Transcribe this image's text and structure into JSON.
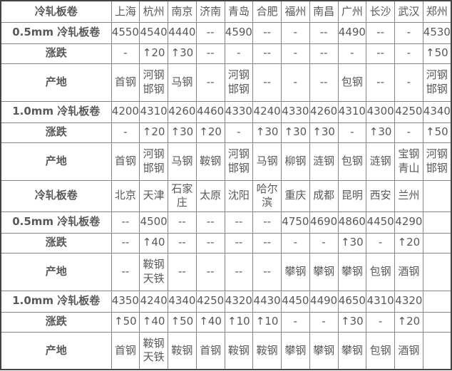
{
  "colors": {
    "section_label": "#ff0000",
    "city_text": "#0000ff",
    "row_label_text": "#3d3d3d",
    "value_text": "#595959",
    "change_up": "#fe0000",
    "change_flat": "#008000",
    "grid_line": "#858585",
    "background": "#ffffff"
  },
  "table": {
    "sections": [
      {
        "header_label": "冷轧板卷",
        "cities": [
          "上海",
          "杭州",
          "南京",
          "济南",
          "青岛",
          "合肥",
          "福州",
          "南昌",
          "广州",
          "长沙",
          "武汉",
          "郑州"
        ],
        "rows": [
          {
            "label": "0.5mm 冷轧板卷",
            "kind": "price",
            "values": [
              "4550",
              "4540",
              "4440",
              "--",
              "4590",
              "--",
              "-",
              "--",
              "4490",
              "--",
              "-",
              "4530"
            ]
          },
          {
            "label": "涨跌",
            "kind": "change",
            "values": [
              "-",
              "↑20",
              "↑30",
              "--",
              "-",
              "--",
              "-",
              "--",
              "-",
              "--",
              "-",
              "↑50"
            ]
          },
          {
            "label": "产地",
            "kind": "origin",
            "values": [
              "首钢",
              "河钢邯钢",
              "马钢",
              "--",
              "河钢邯钢",
              "--",
              "-",
              "--",
              "包钢",
              "--",
              "-",
              "河钢邯钢"
            ]
          },
          {
            "label": "1.0mm 冷轧板卷",
            "kind": "price",
            "values": [
              "4200",
              "4310",
              "4260",
              "4460",
              "4330",
              "4240",
              "4330",
              "4260",
              "4310",
              "4300",
              "4250",
              "4340"
            ]
          },
          {
            "label": "涨跌",
            "kind": "change",
            "values": [
              "-",
              "↑20",
              "↑30",
              "↑20",
              "-",
              "↑30",
              "↑30",
              "↑30",
              "-",
              "↑30",
              "-",
              "↑50"
            ]
          },
          {
            "label": "产地",
            "kind": "origin",
            "values": [
              "首钢",
              "河钢邯钢",
              "马钢",
              "鞍钢",
              "河钢邯钢",
              "马钢",
              "柳钢",
              "涟钢",
              "包钢",
              "涟钢",
              "宝钢青山",
              "河钢邯钢"
            ]
          }
        ]
      },
      {
        "header_label": "冷轧板卷",
        "cities": [
          "北京",
          "天津",
          "石家庄",
          "太原",
          "沈阳",
          "哈尔滨",
          "重庆",
          "成都",
          "昆明",
          "西安",
          "兰州",
          ""
        ],
        "rows": [
          {
            "label": "0.5mm 冷轧板卷",
            "kind": "price",
            "values": [
              "--",
              "4500",
              "--",
              "--",
              "--",
              "--",
              "4750",
              "4690",
              "4860",
              "4450",
              "4290",
              ""
            ]
          },
          {
            "label": "涨跌",
            "kind": "change",
            "values": [
              "--",
              "↑40",
              "--",
              "--",
              "--",
              "--",
              "-",
              "-",
              "↑30",
              "-",
              "↑20",
              ""
            ]
          },
          {
            "label": "产地",
            "kind": "origin",
            "values": [
              "--",
              "鞍钢天铁",
              "--",
              "--",
              "--",
              "--",
              "攀钢",
              "攀钢",
              "攀钢",
              "包钢",
              "酒钢",
              ""
            ]
          },
          {
            "label": "1.0mm 冷轧板卷",
            "kind": "price",
            "values": [
              "4350",
              "4240",
              "4340",
              "4250",
              "4320",
              "4430",
              "4450",
              "4490",
              "4650",
              "4310",
              "4320",
              ""
            ]
          },
          {
            "label": "涨跌",
            "kind": "change",
            "values": [
              "↑50",
              "↑40",
              "↑50",
              "↑40",
              "↑10",
              "↑10",
              "-",
              "-",
              "↑30",
              "-",
              "↑20",
              ""
            ]
          },
          {
            "label": "产地",
            "kind": "origin",
            "values": [
              "首钢",
              "鞍钢天铁",
              "鞍钢",
              "首钢",
              "鞍钢",
              "鞍钢",
              "攀钢",
              "攀钢",
              "攀钢",
              "包钢",
              "酒钢",
              ""
            ]
          }
        ]
      }
    ]
  }
}
